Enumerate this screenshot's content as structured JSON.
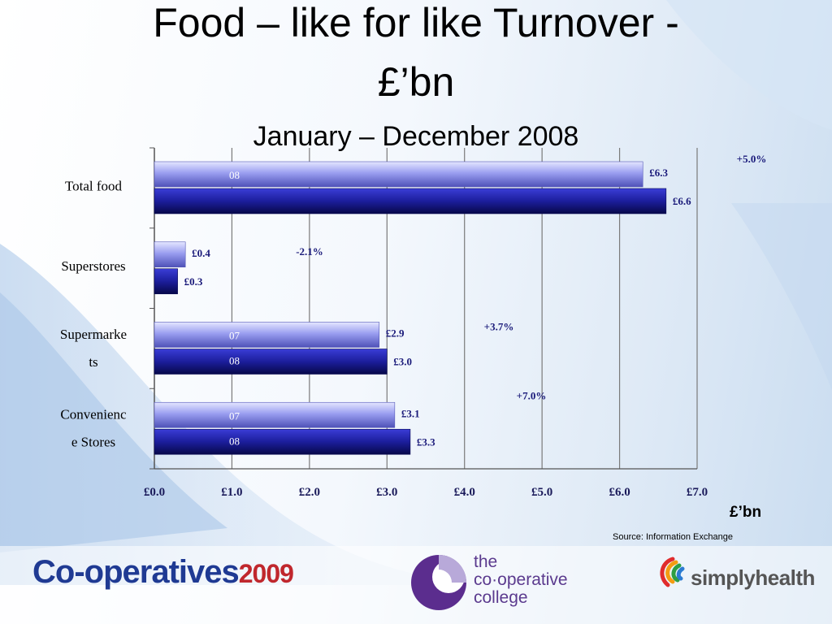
{
  "title_line1": "Food – like for like Turnover -",
  "title_line2": "£’bn",
  "subtitle": "January – December 2008",
  "unit_label": "£’bn",
  "source": "Source: Information Exchange",
  "logos": {
    "coop_name": "Co-operatives",
    "coop_year": "2009",
    "college": [
      "the",
      "co·operative",
      "college"
    ],
    "simply": "simplyhealth"
  },
  "colors": {
    "series_07": "#9a9ef0",
    "series_08": "#1c1e9c",
    "label_text": "#1a1a7a"
  },
  "chart_data": {
    "type": "bar",
    "orientation": "horizontal",
    "categories": [
      "Total food",
      "Superstores",
      "Supermarke ts",
      "Convenienc e Stores"
    ],
    "category_lines": [
      [
        "Total food"
      ],
      [
        "Superstores"
      ],
      [
        "Supermarke",
        "ts"
      ],
      [
        "Convenienc",
        "e Stores"
      ]
    ],
    "series": [
      {
        "values": [
          6.3,
          0.4,
          2.9,
          3.1
        ],
        "value_labels": [
          "£6.3",
          "£0.4",
          "£2.9",
          "£3.1"
        ],
        "inner_labels": [
          "08",
          "",
          "07",
          "07"
        ]
      },
      {
        "values": [
          6.6,
          0.3,
          3.0,
          3.3
        ],
        "value_labels": [
          "£6.6",
          "£0.3",
          "£3.0",
          "£3.3"
        ],
        "inner_labels": [
          "",
          "",
          "08",
          "08"
        ]
      }
    ],
    "changes": [
      "+5.0%",
      "-2.1%",
      "+3.7%",
      "+7.0%"
    ],
    "xlim": [
      0,
      7
    ],
    "x_ticks": [
      0,
      1,
      2,
      3,
      4,
      5,
      6,
      7
    ],
    "x_tick_labels": [
      "£0.0",
      "£1.0",
      "£2.0",
      "£3.0",
      "£4.0",
      "£5.0",
      "£6.0",
      "£7.0"
    ],
    "grid": true
  }
}
